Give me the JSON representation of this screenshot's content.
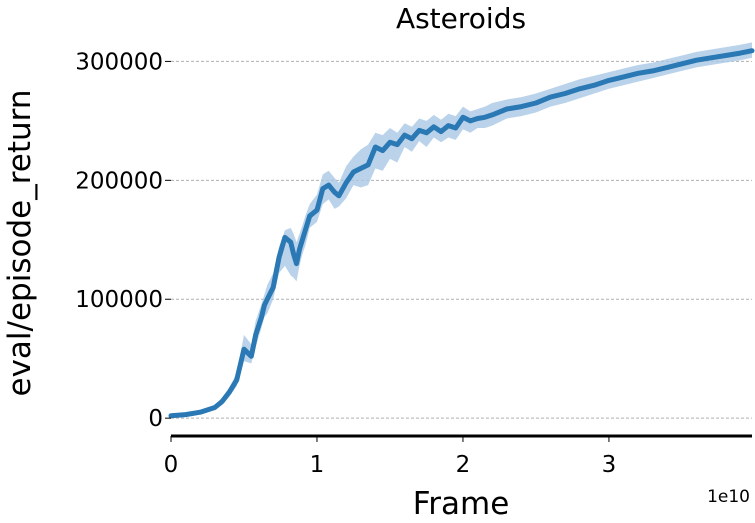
{
  "chart_data": {
    "type": "line",
    "title": "Asteroids",
    "xlabel": "Frame",
    "ylabel": "eval/episode_return",
    "x_offset_label": "1e10",
    "xlim": [
      0,
      3.98
    ],
    "ylim": [
      -15000,
      318000
    ],
    "x_ticks": [
      0,
      1,
      2,
      3
    ],
    "x_tick_labels": [
      "0",
      "1",
      "2",
      "3"
    ],
    "y_ticks": [
      0,
      100000,
      200000,
      300000
    ],
    "y_tick_labels": [
      "0",
      "100000",
      "200000",
      "300000"
    ],
    "grid": "y-dashed",
    "colors": {
      "line": "#2a78b4",
      "band": "#a9c8e6"
    },
    "series": [
      {
        "x": [
          0.0,
          0.1,
          0.2,
          0.3,
          0.35,
          0.4,
          0.45,
          0.5,
          0.55,
          0.58,
          0.62,
          0.64,
          0.66,
          0.7,
          0.74,
          0.78,
          0.82,
          0.84,
          0.86,
          0.88,
          0.9,
          0.92,
          0.95,
          1.0,
          1.04,
          1.08,
          1.12,
          1.15,
          1.2,
          1.25,
          1.3,
          1.35,
          1.4,
          1.45,
          1.5,
          1.55,
          1.6,
          1.65,
          1.7,
          1.75,
          1.8,
          1.85,
          1.9,
          1.95,
          2.0,
          2.05,
          2.1,
          2.15,
          2.2,
          2.3,
          2.4,
          2.5,
          2.6,
          2.7,
          2.8,
          2.9,
          3.0,
          3.1,
          3.2,
          3.3,
          3.4,
          3.5,
          3.6,
          3.7,
          3.8,
          3.9,
          3.98
        ],
        "y": [
          2000,
          3000,
          5000,
          9000,
          14000,
          22000,
          32000,
          58000,
          52000,
          70000,
          85000,
          95000,
          100000,
          110000,
          135000,
          152000,
          148000,
          138000,
          130000,
          142000,
          150000,
          158000,
          170000,
          175000,
          193000,
          196000,
          190000,
          187000,
          198000,
          207000,
          210000,
          213000,
          228000,
          225000,
          232000,
          230000,
          238000,
          235000,
          242000,
          240000,
          245000,
          241000,
          246000,
          244000,
          253000,
          250000,
          252000,
          253000,
          255000,
          260000,
          262000,
          265000,
          270000,
          273000,
          277000,
          280000,
          284000,
          287000,
          290000,
          292000,
          295000,
          298000,
          301000,
          303000,
          305000,
          307000,
          309000
        ],
        "lower": [
          1000,
          2000,
          4000,
          7000,
          11000,
          18000,
          27000,
          48000,
          46000,
          60000,
          76000,
          85000,
          88000,
          100000,
          122000,
          128000,
          120000,
          118000,
          115000,
          128000,
          138000,
          145000,
          160000,
          165000,
          180000,
          184000,
          176000,
          178000,
          185000,
          196000,
          194000,
          196000,
          210000,
          208000,
          218000,
          215000,
          228000,
          224000,
          233000,
          228000,
          236000,
          232000,
          236000,
          234000,
          243000,
          240000,
          244000,
          244000,
          246000,
          252000,
          254000,
          257000,
          262000,
          265000,
          269000,
          273000,
          277000,
          280000,
          283000,
          286000,
          289000,
          292000,
          295000,
          297000,
          299000,
          301000,
          303000
        ],
        "upper": [
          3000,
          4000,
          6000,
          11000,
          17000,
          26000,
          38000,
          70000,
          62000,
          82000,
          96000,
          104000,
          112000,
          122000,
          144000,
          158000,
          160000,
          155000,
          148000,
          155000,
          162000,
          170000,
          180000,
          188000,
          205000,
          208000,
          202000,
          198000,
          212000,
          220000,
          226000,
          230000,
          240000,
          238000,
          244000,
          240000,
          248000,
          245000,
          252000,
          250000,
          255000,
          251000,
          256000,
          254000,
          262000,
          258000,
          260000,
          262000,
          265000,
          268000,
          270000,
          273000,
          277000,
          281000,
          285000,
          288000,
          291000,
          294000,
          297000,
          299000,
          302000,
          305000,
          308000,
          310000,
          312000,
          314000,
          316000
        ]
      }
    ]
  }
}
